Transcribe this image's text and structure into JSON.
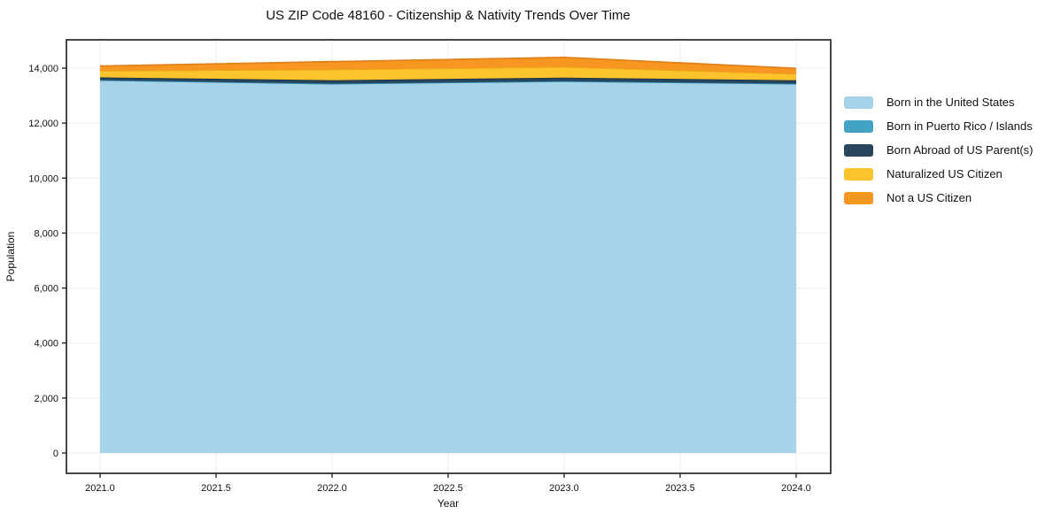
{
  "chart_data": {
    "type": "area",
    "stacked": true,
    "title": "US ZIP Code 48160 - Citizenship & Nativity Trends Over Time",
    "xlabel": "Year",
    "ylabel": "Population",
    "x": [
      2021,
      2022,
      2023,
      2024
    ],
    "series": [
      {
        "name": "Born in the United States",
        "values": [
          13560,
          13430,
          13520,
          13430
        ],
        "fill": "#a6d3e8",
        "edge": "#86bdd8"
      },
      {
        "name": "Born in Puerto Rico / Islands",
        "values": [
          5,
          5,
          5,
          5
        ],
        "fill": "#42a3c5",
        "edge": "#2f89a8"
      },
      {
        "name": "Born Abroad of US Parent(s)",
        "values": [
          100,
          125,
          130,
          125
        ],
        "fill": "#27455c",
        "edge": "#1d3548"
      },
      {
        "name": "Naturalized US Citizen",
        "values": [
          240,
          390,
          390,
          230
        ],
        "fill": "#fcc32d",
        "edge": "#eaa81b"
      },
      {
        "name": "Not a US Citizen",
        "values": [
          170,
          285,
          345,
          200
        ],
        "fill": "#f79722",
        "edge": "#e2801a"
      }
    ],
    "xlim": [
      2020.855,
      2024.149
    ],
    "ylim": [
      -740,
      15030
    ],
    "x_ticks": [
      2021.0,
      2021.5,
      2022.0,
      2022.5,
      2023.0,
      2023.5,
      2024.0
    ],
    "x_tick_labels": [
      "2021.0",
      "2021.5",
      "2022.0",
      "2022.5",
      "2023.0",
      "2023.5",
      "2024.0"
    ],
    "y_ticks": [
      0,
      2000,
      4000,
      6000,
      8000,
      10000,
      12000,
      14000
    ],
    "y_tick_labels": [
      "0",
      "2,000",
      "4,000",
      "6,000",
      "8,000",
      "10,000",
      "12,000",
      "14,000"
    ],
    "grid": true,
    "legend_position": "right",
    "colors": {
      "grid_line": "#ededed",
      "axis_line": "#1a1a1a",
      "text": "#111111",
      "background": "#ffffff"
    }
  }
}
